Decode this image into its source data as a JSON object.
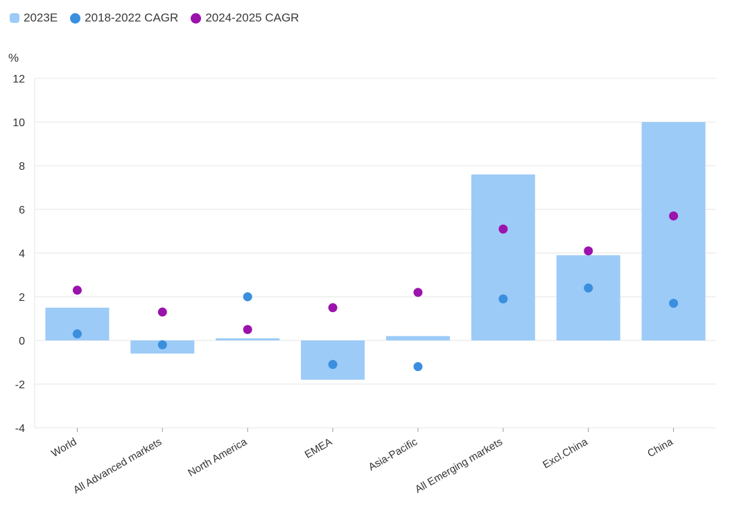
{
  "chart_data": {
    "type": "bar",
    "ylabel": "%",
    "ylim": [
      -4,
      12
    ],
    "yticks": [
      "12",
      "10",
      "8",
      "6",
      "4",
      "2",
      "0",
      "-2",
      "-4"
    ],
    "ytick_values": [
      12,
      10,
      8,
      6,
      4,
      2,
      0,
      -2,
      -4
    ],
    "categories": [
      "World",
      "All Advanced markets",
      "North America",
      "EMEA",
      "Asia-Pacific",
      "All Emerging markets",
      "Excl.China",
      "China"
    ],
    "series": [
      {
        "name": "2023E",
        "kind": "bar",
        "color": "#9ccbf7",
        "values": [
          1.5,
          -0.6,
          0.1,
          -1.8,
          0.2,
          7.6,
          3.9,
          10.0
        ]
      },
      {
        "name": "2018-2022 CAGR",
        "kind": "dot",
        "color": "#3a8fdf",
        "values": [
          0.3,
          -0.2,
          2.0,
          -1.1,
          -1.2,
          1.9,
          2.4,
          1.7
        ]
      },
      {
        "name": "2024-2025 CAGR",
        "kind": "dot",
        "color": "#9b12ad",
        "values": [
          2.3,
          1.3,
          0.5,
          1.5,
          2.2,
          5.1,
          4.1,
          5.7
        ]
      }
    ],
    "grid": true,
    "legend_position": "top-left"
  }
}
